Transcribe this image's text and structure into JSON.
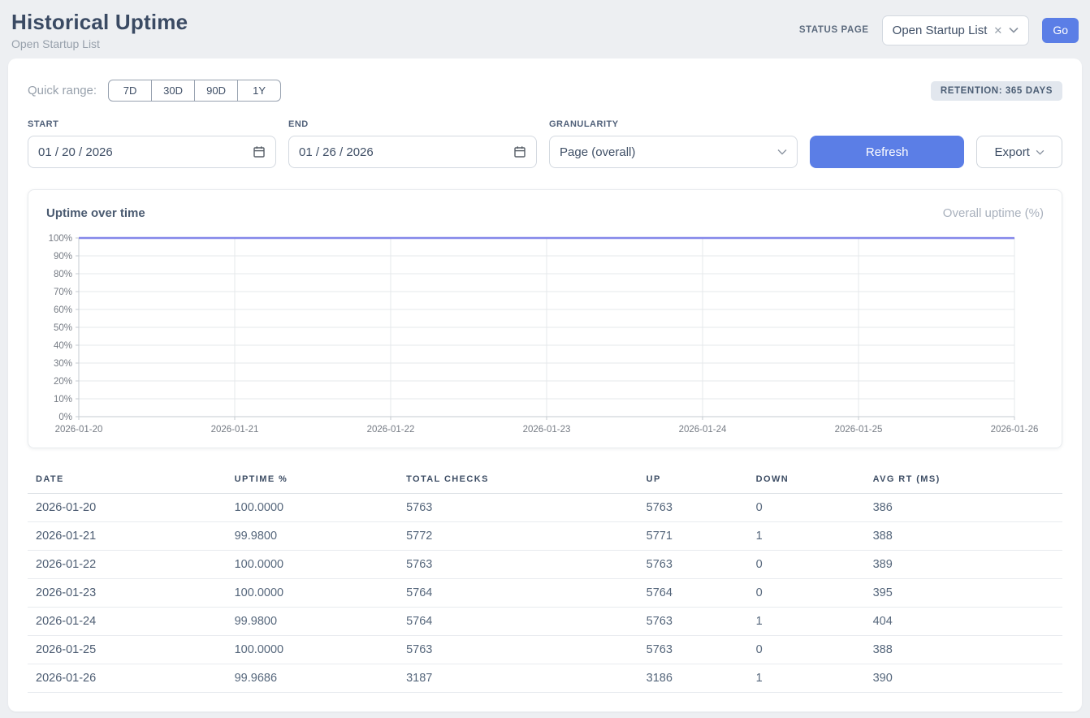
{
  "header": {
    "title": "Historical Uptime",
    "subtitle": "Open Startup List",
    "status_page_label": "STATUS PAGE",
    "status_page_value": "Open Startup List",
    "clear_icon": "✕",
    "go_label": "Go"
  },
  "colors": {
    "accent_blue": "#5b7ee6",
    "line_purple": "#8487ea",
    "badge_bg": "#e2e7ee"
  },
  "controls": {
    "quick_range_label": "Quick range:",
    "quick_ranges": [
      "7D",
      "30D",
      "90D",
      "1Y"
    ],
    "retention_badge": "RETENTION: 365 DAYS",
    "start_label": "START",
    "start_value": "01 / 20 / 2026",
    "end_label": "END",
    "end_value": "01 / 26 / 2026",
    "granularity_label": "GRANULARITY",
    "granularity_value": "Page (overall)",
    "refresh_label": "Refresh",
    "export_label": "Export"
  },
  "chart_data": {
    "type": "line",
    "title": "Uptime over time",
    "legend": "Overall uptime (%)",
    "x": [
      "2026-01-20",
      "2026-01-21",
      "2026-01-22",
      "2026-01-23",
      "2026-01-24",
      "2026-01-25",
      "2026-01-26"
    ],
    "series": [
      {
        "name": "Overall uptime (%)",
        "values": [
          100.0,
          99.98,
          100.0,
          100.0,
          99.98,
          100.0,
          99.9686
        ]
      }
    ],
    "ylim": [
      0,
      100
    ],
    "ytick_step": 10,
    "ytick_suffix": "%",
    "grid": true,
    "legend_position": "top-right",
    "line_color": "#8487ea",
    "grid_color": "#e6e8eb",
    "axis_color": "#c6cbd1"
  },
  "table": {
    "columns": [
      "DATE",
      "UPTIME %",
      "TOTAL CHECKS",
      "UP",
      "DOWN",
      "AVG RT (MS)"
    ],
    "col_widths": [
      "19.2%",
      "16.6%",
      "23.2%",
      "10.6%",
      "11.3%",
      "19.1%"
    ],
    "rows": [
      [
        "2026-01-20",
        "100.0000",
        "5763",
        "5763",
        "0",
        "386"
      ],
      [
        "2026-01-21",
        "99.9800",
        "5772",
        "5771",
        "1",
        "388"
      ],
      [
        "2026-01-22",
        "100.0000",
        "5763",
        "5763",
        "0",
        "389"
      ],
      [
        "2026-01-23",
        "100.0000",
        "5764",
        "5764",
        "0",
        "395"
      ],
      [
        "2026-01-24",
        "99.9800",
        "5764",
        "5763",
        "1",
        "404"
      ],
      [
        "2026-01-25",
        "100.0000",
        "5763",
        "5763",
        "0",
        "388"
      ],
      [
        "2026-01-26",
        "99.9686",
        "3187",
        "3186",
        "1",
        "390"
      ]
    ]
  }
}
